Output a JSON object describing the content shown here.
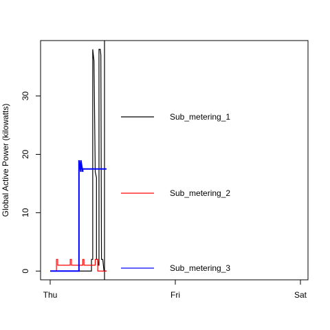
{
  "chart_data": {
    "type": "line",
    "title": "",
    "xlabel": "",
    "ylabel": "Global Active Power (kilowatts)",
    "x_tick_labels": [
      "Thu",
      "Fri",
      "Sat"
    ],
    "y_ticks": [
      0,
      10,
      20,
      30
    ],
    "ylim": [
      -1.5,
      39.5
    ],
    "legend_position": "right",
    "grid": false,
    "series": [
      {
        "name": "Sub_metering_1",
        "color": "#000000",
        "x": [
          0.0,
          0.32,
          0.33,
          0.33,
          0.34,
          0.34,
          0.345,
          0.35,
          0.36,
          0.37,
          0.37,
          0.38,
          0.385,
          0.39,
          0.39,
          0.4,
          0.405,
          0.41,
          0.42,
          0.43,
          0.43,
          0.435,
          0.44,
          0.45
        ],
        "values": [
          0,
          0,
          0,
          2,
          2,
          38,
          37,
          36,
          17,
          16,
          2,
          2,
          1,
          1,
          38,
          38,
          37,
          2,
          2,
          0,
          0,
          0,
          0,
          0
        ]
      },
      {
        "name": "Sub_metering_2",
        "color": "#ff0000",
        "x": [
          0.0,
          0.05,
          0.05,
          0.06,
          0.06,
          0.16,
          0.16,
          0.17,
          0.17,
          0.26,
          0.26,
          0.27,
          0.27,
          0.36,
          0.36,
          0.38,
          0.38,
          0.45
        ],
        "values": [
          0,
          0,
          2,
          2,
          1,
          1,
          2,
          2,
          1,
          1,
          2,
          2,
          1,
          1,
          2,
          2,
          0,
          0
        ],
        "note": ""
      },
      {
        "name": "Sub_metering_3",
        "color": "#0000ff",
        "x": [
          0.0,
          0.23,
          0.23,
          0.245,
          0.245,
          0.26,
          0.26,
          0.45
        ],
        "values": [
          0,
          0,
          19,
          17,
          19,
          17,
          17.5,
          17.5
        ]
      }
    ]
  }
}
